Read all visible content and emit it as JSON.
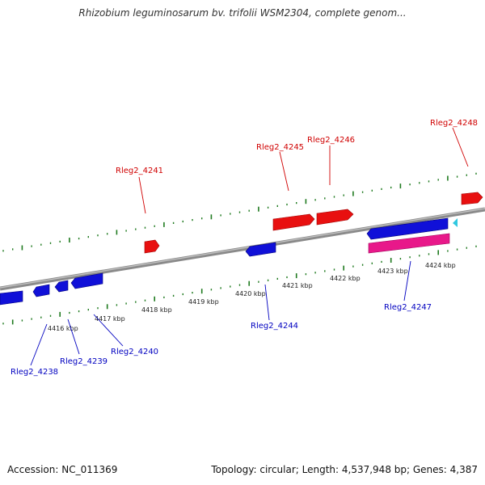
{
  "title": "Rhizobium leguminosarum bv. trifolii WSM2304, complete genom...",
  "footer": {
    "accession": "Accession: NC_011369",
    "summary": "Topology: circular; Length: 4,537,948 bp; Genes: 4,387"
  },
  "colors": {
    "forward_gene": "#e81010",
    "reverse_gene": "#1010d8",
    "rna_gene": "#e8188a",
    "small_feature": "#30c8e0",
    "backbone": "#8a8a8a",
    "ticks": "#1f7a1f",
    "forward_label": "#d00000",
    "reverse_label": "#0000c0"
  },
  "ruler_labels": [
    "4416 kbp",
    "4417 kbp",
    "4418 kbp",
    "4419 kbp",
    "4420 kbp",
    "4421 kbp",
    "4422 kbp",
    "4423 kbp",
    "4424 kbp"
  ],
  "forward_genes": [
    "Rleg2_4241",
    "Rleg2_4245",
    "Rleg2_4246",
    "Rleg2_4248"
  ],
  "reverse_genes": [
    "Rleg2_4238",
    "Rleg2_4239",
    "Rleg2_4240",
    "Rleg2_4244",
    "Rleg2_4247"
  ]
}
